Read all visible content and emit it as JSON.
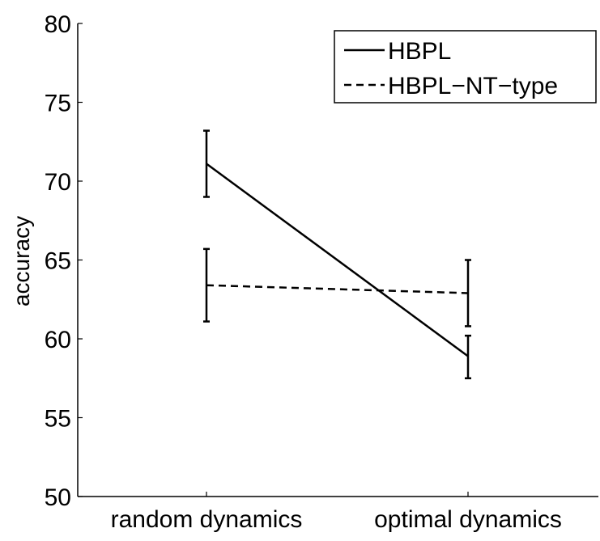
{
  "chart_data": {
    "type": "line",
    "categories": [
      "random dynamics",
      "optimal dynamics"
    ],
    "ylabel": "accuracy",
    "ylim": [
      50,
      80
    ],
    "yticks": [
      50,
      55,
      60,
      65,
      70,
      75,
      80
    ],
    "grid": false,
    "legend_position": "top-right",
    "series": [
      {
        "name": "HBPL",
        "style": "solid",
        "values": [
          71.1,
          58.9
        ],
        "error_low": [
          69.0,
          57.5
        ],
        "error_high": [
          73.2,
          60.2
        ]
      },
      {
        "name": "HBPL−NT−type",
        "style": "dashed",
        "values": [
          63.4,
          62.9
        ],
        "error_low": [
          61.1,
          60.8
        ],
        "error_high": [
          65.7,
          65.0
        ]
      }
    ]
  }
}
